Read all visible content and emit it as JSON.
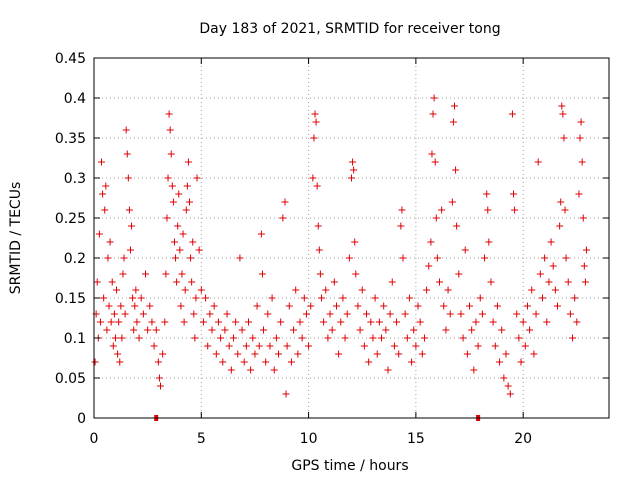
{
  "chart_data": {
    "type": "scatter",
    "title": "Day 183 of 2021, SRMTID for receiver tong",
    "xlabel": "GPS time / hours",
    "ylabel": "SRMTID / TECUs",
    "xlim": [
      0,
      24
    ],
    "ylim": [
      0,
      0.45
    ],
    "x_ticks": [
      0,
      5,
      10,
      15,
      20
    ],
    "y_ticks": [
      0,
      0.05,
      0.1,
      0.15,
      0.2,
      0.25,
      0.3,
      0.35,
      0.4,
      0.45
    ],
    "x_tick_labels": [
      "0",
      "5",
      "10",
      "15",
      "20"
    ],
    "y_tick_labels": [
      "0",
      "0.05",
      "0.1",
      "0.15",
      "0.2",
      "0.25",
      "0.3",
      "0.35",
      "0.4",
      "0.45"
    ],
    "grid": true,
    "marker": "plus",
    "color": "#e00000",
    "baseline_markers": [
      {
        "x": 2.9,
        "y": 0
      },
      {
        "x": 17.9,
        "y": 0
      }
    ],
    "series": [
      {
        "name": "SRMTID",
        "points": [
          [
            0.05,
            0.07
          ],
          [
            0.1,
            0.13
          ],
          [
            0.15,
            0.17
          ],
          [
            0.2,
            0.1
          ],
          [
            0.25,
            0.23
          ],
          [
            0.3,
            0.12
          ],
          [
            0.35,
            0.32
          ],
          [
            0.4,
            0.28
          ],
          [
            0.45,
            0.15
          ],
          [
            0.5,
            0.26
          ],
          [
            0.55,
            0.29
          ],
          [
            0.6,
            0.11
          ],
          [
            0.65,
            0.2
          ],
          [
            0.7,
            0.14
          ],
          [
            0.75,
            0.22
          ],
          [
            0.8,
            0.12
          ],
          [
            0.85,
            0.17
          ],
          [
            0.9,
            0.09
          ],
          [
            0.95,
            0.13
          ],
          [
            1.0,
            0.1
          ],
          [
            1.05,
            0.16
          ],
          [
            1.1,
            0.08
          ],
          [
            1.15,
            0.12
          ],
          [
            1.2,
            0.07
          ],
          [
            1.25,
            0.14
          ],
          [
            1.3,
            0.1
          ],
          [
            1.35,
            0.18
          ],
          [
            1.4,
            0.2
          ],
          [
            1.45,
            0.13
          ],
          [
            1.5,
            0.36
          ],
          [
            1.55,
            0.33
          ],
          [
            1.6,
            0.3
          ],
          [
            1.65,
            0.26
          ],
          [
            1.7,
            0.21
          ],
          [
            1.75,
            0.24
          ],
          [
            1.8,
            0.15
          ],
          [
            1.85,
            0.11
          ],
          [
            1.9,
            0.14
          ],
          [
            1.95,
            0.16
          ],
          [
            2.0,
            0.12
          ],
          [
            2.1,
            0.1
          ],
          [
            2.2,
            0.15
          ],
          [
            2.3,
            0.13
          ],
          [
            2.4,
            0.18
          ],
          [
            2.5,
            0.11
          ],
          [
            2.6,
            0.14
          ],
          [
            2.7,
            0.12
          ],
          [
            2.8,
            0.09
          ],
          [
            2.9,
            0.11
          ],
          [
            3.0,
            0.07
          ],
          [
            3.05,
            0.05
          ],
          [
            3.1,
            0.04
          ],
          [
            3.2,
            0.08
          ],
          [
            3.3,
            0.12
          ],
          [
            3.35,
            0.18
          ],
          [
            3.4,
            0.25
          ],
          [
            3.45,
            0.3
          ],
          [
            3.5,
            0.38
          ],
          [
            3.55,
            0.36
          ],
          [
            3.6,
            0.33
          ],
          [
            3.65,
            0.29
          ],
          [
            3.7,
            0.27
          ],
          [
            3.75,
            0.22
          ],
          [
            3.8,
            0.2
          ],
          [
            3.85,
            0.17
          ],
          [
            3.9,
            0.24
          ],
          [
            3.95,
            0.28
          ],
          [
            4.0,
            0.21
          ],
          [
            4.05,
            0.14
          ],
          [
            4.1,
            0.18
          ],
          [
            4.15,
            0.23
          ],
          [
            4.2,
            0.12
          ],
          [
            4.25,
            0.16
          ],
          [
            4.3,
            0.26
          ],
          [
            4.35,
            0.29
          ],
          [
            4.4,
            0.32
          ],
          [
            4.45,
            0.27
          ],
          [
            4.5,
            0.2
          ],
          [
            4.55,
            0.17
          ],
          [
            4.6,
            0.22
          ],
          [
            4.65,
            0.13
          ],
          [
            4.7,
            0.1
          ],
          [
            4.75,
            0.15
          ],
          [
            4.8,
            0.3
          ],
          [
            4.9,
            0.21
          ],
          [
            5.0,
            0.16
          ],
          [
            5.1,
            0.12
          ],
          [
            5.2,
            0.15
          ],
          [
            5.3,
            0.09
          ],
          [
            5.4,
            0.13
          ],
          [
            5.5,
            0.11
          ],
          [
            5.6,
            0.14
          ],
          [
            5.7,
            0.08
          ],
          [
            5.8,
            0.12
          ],
          [
            5.9,
            0.1
          ],
          [
            6.0,
            0.07
          ],
          [
            6.1,
            0.11
          ],
          [
            6.2,
            0.13
          ],
          [
            6.3,
            0.09
          ],
          [
            6.4,
            0.06
          ],
          [
            6.5,
            0.1
          ],
          [
            6.6,
            0.12
          ],
          [
            6.7,
            0.08
          ],
          [
            6.8,
            0.2
          ],
          [
            6.9,
            0.11
          ],
          [
            7.0,
            0.07
          ],
          [
            7.1,
            0.09
          ],
          [
            7.2,
            0.12
          ],
          [
            7.3,
            0.06
          ],
          [
            7.4,
            0.1
          ],
          [
            7.5,
            0.08
          ],
          [
            7.6,
            0.14
          ],
          [
            7.7,
            0.09
          ],
          [
            7.8,
            0.23
          ],
          [
            7.85,
            0.18
          ],
          [
            7.9,
            0.11
          ],
          [
            8.0,
            0.07
          ],
          [
            8.1,
            0.13
          ],
          [
            8.2,
            0.09
          ],
          [
            8.3,
            0.15
          ],
          [
            8.4,
            0.06
          ],
          [
            8.5,
            0.1
          ],
          [
            8.6,
            0.08
          ],
          [
            8.7,
            0.12
          ],
          [
            8.8,
            0.25
          ],
          [
            8.9,
            0.27
          ],
          [
            8.95,
            0.03
          ],
          [
            9.0,
            0.09
          ],
          [
            9.1,
            0.14
          ],
          [
            9.2,
            0.07
          ],
          [
            9.3,
            0.11
          ],
          [
            9.4,
            0.16
          ],
          [
            9.5,
            0.08
          ],
          [
            9.6,
            0.12
          ],
          [
            9.7,
            0.1
          ],
          [
            9.8,
            0.15
          ],
          [
            9.9,
            0.13
          ],
          [
            10.0,
            0.09
          ],
          [
            10.1,
            0.14
          ],
          [
            10.2,
            0.3
          ],
          [
            10.25,
            0.35
          ],
          [
            10.3,
            0.38
          ],
          [
            10.35,
            0.37
          ],
          [
            10.4,
            0.29
          ],
          [
            10.45,
            0.24
          ],
          [
            10.5,
            0.21
          ],
          [
            10.55,
            0.18
          ],
          [
            10.6,
            0.15
          ],
          [
            10.7,
            0.12
          ],
          [
            10.8,
            0.16
          ],
          [
            10.9,
            0.1
          ],
          [
            11.0,
            0.13
          ],
          [
            11.1,
            0.11
          ],
          [
            11.2,
            0.17
          ],
          [
            11.3,
            0.14
          ],
          [
            11.4,
            0.08
          ],
          [
            11.5,
            0.12
          ],
          [
            11.6,
            0.15
          ],
          [
            11.7,
            0.1
          ],
          [
            11.8,
            0.13
          ],
          [
            11.9,
            0.2
          ],
          [
            12.0,
            0.3
          ],
          [
            12.05,
            0.32
          ],
          [
            12.1,
            0.31
          ],
          [
            12.15,
            0.22
          ],
          [
            12.2,
            0.18
          ],
          [
            12.3,
            0.14
          ],
          [
            12.4,
            0.11
          ],
          [
            12.5,
            0.16
          ],
          [
            12.6,
            0.09
          ],
          [
            12.7,
            0.13
          ],
          [
            12.8,
            0.07
          ],
          [
            12.9,
            0.12
          ],
          [
            13.0,
            0.1
          ],
          [
            13.1,
            0.15
          ],
          [
            13.2,
            0.08
          ],
          [
            13.3,
            0.12
          ],
          [
            13.4,
            0.1
          ],
          [
            13.5,
            0.14
          ],
          [
            13.6,
            0.11
          ],
          [
            13.7,
            0.06
          ],
          [
            13.8,
            0.13
          ],
          [
            13.9,
            0.17
          ],
          [
            14.0,
            0.09
          ],
          [
            14.1,
            0.12
          ],
          [
            14.2,
            0.08
          ],
          [
            14.3,
            0.24
          ],
          [
            14.35,
            0.26
          ],
          [
            14.4,
            0.2
          ],
          [
            14.5,
            0.13
          ],
          [
            14.6,
            0.1
          ],
          [
            14.7,
            0.15
          ],
          [
            14.8,
            0.07
          ],
          [
            14.9,
            0.11
          ],
          [
            15.0,
            0.09
          ],
          [
            15.1,
            0.14
          ],
          [
            15.2,
            0.12
          ],
          [
            15.3,
            0.08
          ],
          [
            15.4,
            0.1
          ],
          [
            15.5,
            0.16
          ],
          [
            15.6,
            0.19
          ],
          [
            15.7,
            0.22
          ],
          [
            15.75,
            0.33
          ],
          [
            15.8,
            0.38
          ],
          [
            15.85,
            0.4
          ],
          [
            15.9,
            0.32
          ],
          [
            15.95,
            0.25
          ],
          [
            16.0,
            0.2
          ],
          [
            16.1,
            0.17
          ],
          [
            16.2,
            0.26
          ],
          [
            16.3,
            0.14
          ],
          [
            16.4,
            0.11
          ],
          [
            16.5,
            0.16
          ],
          [
            16.6,
            0.13
          ],
          [
            16.7,
            0.27
          ],
          [
            16.75,
            0.37
          ],
          [
            16.8,
            0.39
          ],
          [
            16.85,
            0.31
          ],
          [
            16.9,
            0.24
          ],
          [
            17.0,
            0.18
          ],
          [
            17.1,
            0.13
          ],
          [
            17.2,
            0.1
          ],
          [
            17.3,
            0.21
          ],
          [
            17.4,
            0.08
          ],
          [
            17.5,
            0.14
          ],
          [
            17.6,
            0.11
          ],
          [
            17.7,
            0.06
          ],
          [
            17.8,
            0.12
          ],
          [
            17.9,
            0.09
          ],
          [
            18.0,
            0.15
          ],
          [
            18.1,
            0.13
          ],
          [
            18.2,
            0.2
          ],
          [
            18.3,
            0.28
          ],
          [
            18.35,
            0.26
          ],
          [
            18.4,
            0.22
          ],
          [
            18.5,
            0.17
          ],
          [
            18.6,
            0.12
          ],
          [
            18.7,
            0.09
          ],
          [
            18.8,
            0.14
          ],
          [
            18.9,
            0.07
          ],
          [
            19.0,
            0.11
          ],
          [
            19.1,
            0.05
          ],
          [
            19.2,
            0.08
          ],
          [
            19.3,
            0.04
          ],
          [
            19.4,
            0.03
          ],
          [
            19.5,
            0.38
          ],
          [
            19.55,
            0.28
          ],
          [
            19.6,
            0.26
          ],
          [
            19.7,
            0.13
          ],
          [
            19.8,
            0.1
          ],
          [
            19.9,
            0.07
          ],
          [
            20.0,
            0.12
          ],
          [
            20.1,
            0.09
          ],
          [
            20.2,
            0.14
          ],
          [
            20.3,
            0.11
          ],
          [
            20.4,
            0.16
          ],
          [
            20.5,
            0.08
          ],
          [
            20.6,
            0.13
          ],
          [
            20.7,
            0.32
          ],
          [
            20.8,
            0.18
          ],
          [
            20.9,
            0.15
          ],
          [
            21.0,
            0.2
          ],
          [
            21.1,
            0.12
          ],
          [
            21.2,
            0.17
          ],
          [
            21.3,
            0.22
          ],
          [
            21.4,
            0.19
          ],
          [
            21.5,
            0.16
          ],
          [
            21.6,
            0.14
          ],
          [
            21.7,
            0.24
          ],
          [
            21.75,
            0.27
          ],
          [
            21.8,
            0.39
          ],
          [
            21.85,
            0.38
          ],
          [
            21.9,
            0.35
          ],
          [
            21.95,
            0.26
          ],
          [
            22.0,
            0.2
          ],
          [
            22.1,
            0.17
          ],
          [
            22.2,
            0.13
          ],
          [
            22.3,
            0.1
          ],
          [
            22.4,
            0.15
          ],
          [
            22.5,
            0.12
          ],
          [
            22.6,
            0.28
          ],
          [
            22.65,
            0.35
          ],
          [
            22.7,
            0.37
          ],
          [
            22.75,
            0.32
          ],
          [
            22.8,
            0.25
          ],
          [
            22.85,
            0.19
          ],
          [
            22.9,
            0.17
          ],
          [
            22.95,
            0.21
          ]
        ]
      }
    ]
  }
}
